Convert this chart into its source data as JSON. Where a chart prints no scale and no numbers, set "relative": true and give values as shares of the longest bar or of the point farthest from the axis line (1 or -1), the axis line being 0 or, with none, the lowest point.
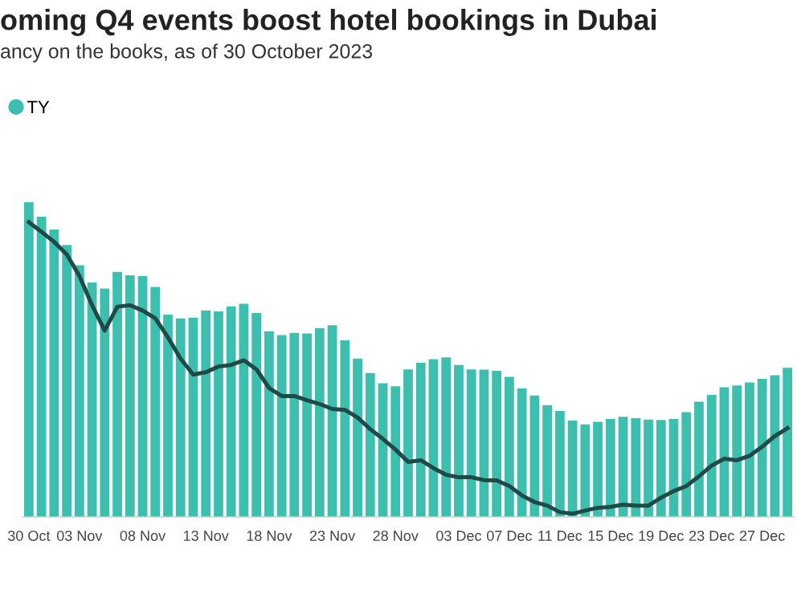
{
  "chart_data": {
    "type": "bar",
    "title": "oming Q4 events boost hotel bookings in Dubai",
    "subtitle": "ancy on the books, as of 30 October 2023",
    "relative": true,
    "legend": "top left",
    "grid": false,
    "categories": [
      "30 Oct",
      null,
      null,
      null,
      "03 Nov",
      null,
      null,
      null,
      null,
      "08 Nov",
      null,
      null,
      null,
      null,
      "13 Nov",
      null,
      null,
      null,
      null,
      "18 Nov",
      null,
      null,
      null,
      null,
      "23 Nov",
      null,
      null,
      null,
      null,
      "28 Nov",
      null,
      null,
      null,
      null,
      "03 Dec",
      null,
      null,
      null,
      "07 Dec",
      null,
      null,
      null,
      "11 Dec",
      null,
      null,
      null,
      "15 Dec",
      null,
      null,
      null,
      "19 Dec",
      null,
      null,
      null,
      "23 Dec",
      null,
      null,
      null,
      "27 Dec",
      null,
      null
    ],
    "series": [
      {
        "name": "TY",
        "color": "#3dbfb0",
        "values": [
          1.0,
          0.954,
          0.913,
          0.864,
          0.8,
          0.745,
          0.726,
          0.779,
          0.768,
          0.765,
          0.731,
          0.643,
          0.631,
          0.633,
          0.656,
          0.653,
          0.669,
          0.677,
          0.648,
          0.59,
          0.578,
          0.585,
          0.583,
          0.6,
          0.609,
          0.561,
          0.503,
          0.457,
          0.425,
          0.415,
          0.469,
          0.49,
          0.501,
          0.507,
          0.483,
          0.469,
          0.468,
          0.464,
          0.445,
          0.408,
          0.386,
          0.355,
          0.337,
          0.306,
          0.294,
          0.302,
          0.311,
          0.318,
          0.314,
          0.309,
          0.308,
          0.311,
          0.333,
          0.366,
          0.388,
          0.412,
          0.418,
          0.427,
          0.439,
          0.45,
          0.474
        ]
      },
      {
        "type": "line",
        "color": "#1f4a45",
        "marker": "none",
        "line_style": "solid",
        "values": [
          0.937,
          0.906,
          0.874,
          0.834,
          0.766,
          0.673,
          0.592,
          0.668,
          0.673,
          0.656,
          0.631,
          0.571,
          0.503,
          0.452,
          0.46,
          0.478,
          0.483,
          0.498,
          0.469,
          0.41,
          0.384,
          0.384,
          0.371,
          0.359,
          0.343,
          0.34,
          0.316,
          0.279,
          0.248,
          0.214,
          0.175,
          0.18,
          0.155,
          0.134,
          0.126,
          0.126,
          0.117,
          0.116,
          0.098,
          0.068,
          0.047,
          0.036,
          0.015,
          0.01,
          0.02,
          0.029,
          0.032,
          0.039,
          0.036,
          0.036,
          0.061,
          0.082,
          0.098,
          0.129,
          0.163,
          0.185,
          0.18,
          0.194,
          0.223,
          0.257,
          0.282
        ]
      }
    ]
  }
}
